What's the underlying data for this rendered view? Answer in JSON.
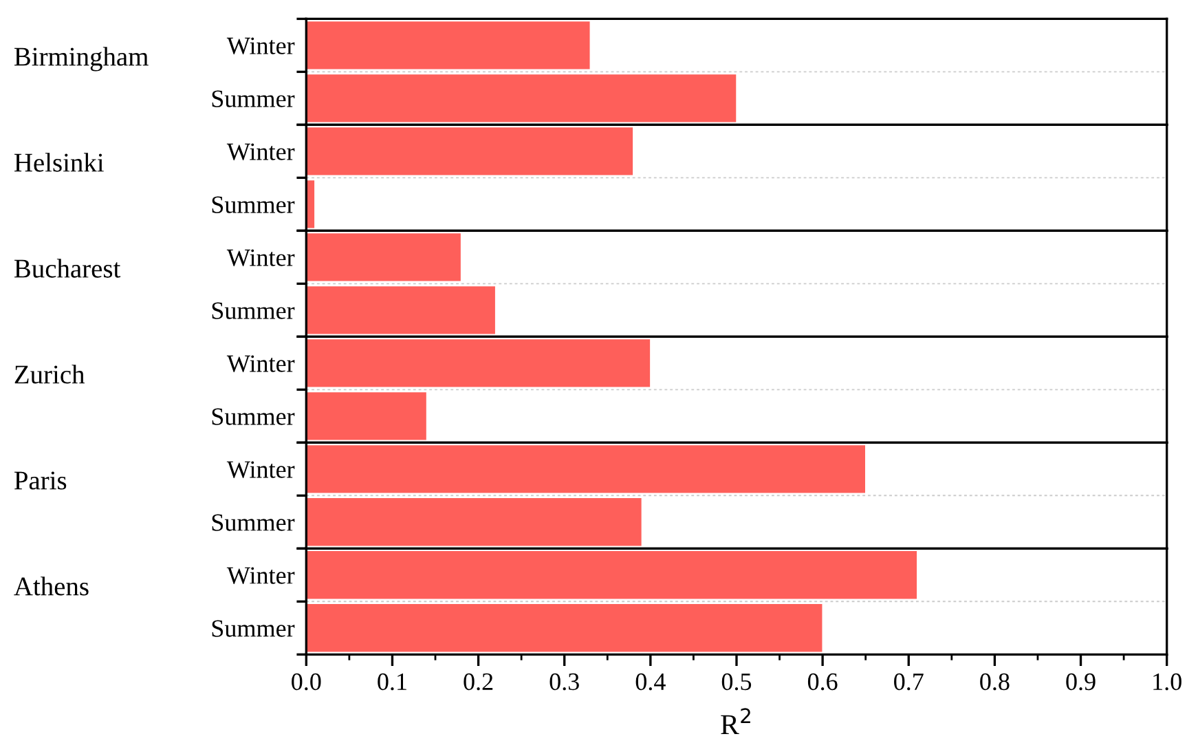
{
  "chart_data": [
    {
      "type": "bar",
      "orientation": "horizontal",
      "ylabel": "Birmingham",
      "categories": [
        "Winter",
        "Summer"
      ],
      "values": [
        0.33,
        0.5
      ],
      "color": "#fe5f5a",
      "xlim": [
        0.0,
        1.0
      ],
      "tick_labels": "y",
      "grid": "y"
    },
    {
      "type": "bar",
      "orientation": "horizontal",
      "ylabel": "Helsinki",
      "categories": [
        "Winter",
        "Summer"
      ],
      "values": [
        0.38,
        0.01
      ],
      "color": "#fe5f5a",
      "xlim": [
        0.0,
        1.0
      ],
      "tick_labels": "y",
      "grid": "y"
    },
    {
      "type": "bar",
      "orientation": "horizontal",
      "ylabel": "Bucharest",
      "categories": [
        "Winter",
        "Summer"
      ],
      "values": [
        0.18,
        0.22
      ],
      "color": "#fe5f5a",
      "xlim": [
        0.0,
        1.0
      ],
      "tick_labels": "y",
      "grid": "y"
    },
    {
      "type": "bar",
      "orientation": "horizontal",
      "ylabel": "Zurich",
      "categories": [
        "Winter",
        "Summer"
      ],
      "values": [
        0.4,
        0.14
      ],
      "color": "#fe5f5a",
      "xlim": [
        0.0,
        1.0
      ],
      "tick_labels": "y",
      "grid": "y"
    },
    {
      "type": "bar",
      "orientation": "horizontal",
      "ylabel": "Paris",
      "categories": [
        "Winter",
        "Summer"
      ],
      "values": [
        0.65,
        0.39
      ],
      "color": "#fe5f5a",
      "xlim": [
        0.0,
        1.0
      ],
      "tick_labels": "y",
      "grid": "y"
    },
    {
      "type": "bar",
      "orientation": "horizontal",
      "ylabel": "Athens",
      "xlabel": "R$^{2}$",
      "categories": [
        "Winter",
        "Summer"
      ],
      "values": [
        0.71,
        0.6
      ],
      "color": "#fe5f5a",
      "xlim": [
        0.0,
        1.0
      ],
      "xticks": [
        {
          "value": 0,
          "label": "0.0"
        },
        0.1,
        0.2,
        0.3,
        0.4,
        0.5,
        0.6,
        0.7,
        0.8,
        0.9,
        {
          "value": 1,
          "label": "1.0"
        }
      ],
      "grid": "y"
    }
  ]
}
